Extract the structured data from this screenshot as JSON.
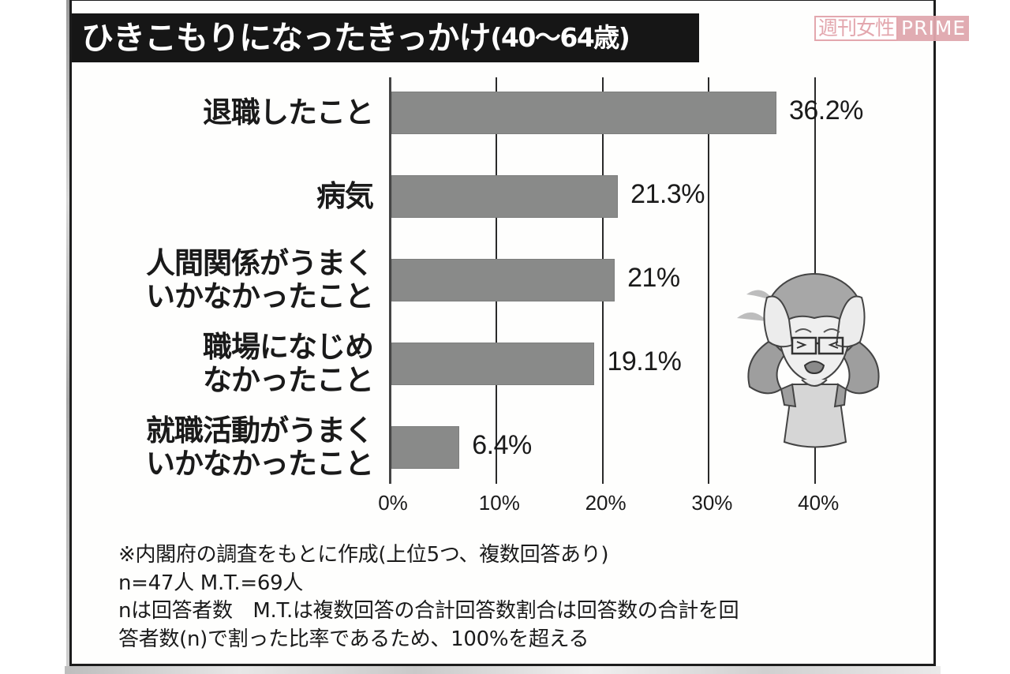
{
  "header": {
    "title_main": "ひきこもりになったきっかけ",
    "title_sub": "(40〜64歳)"
  },
  "logo": {
    "jp": "週刊女性",
    "en": "PRIME",
    "color": "#e0a8ae"
  },
  "chart_data": {
    "type": "bar",
    "orientation": "horizontal",
    "title": "ひきこもりになったきっかけ(40〜64歳)",
    "categories": [
      "退職したこと",
      "病気",
      "人間関係がうまくいかなかったこと",
      "職場になじめなかったこと",
      "就職活動がうまくいかなかったこと"
    ],
    "values": [
      36.2,
      21.3,
      21.0,
      19.1,
      6.4
    ],
    "value_labels": [
      "36.2%",
      "21.3%",
      "21%",
      "19.1%",
      "6.4%"
    ],
    "xlabel": "",
    "ylabel": "",
    "xlim": [
      0,
      40
    ],
    "x_ticks": [
      "0%",
      "10%",
      "20%",
      "30%",
      "40%"
    ],
    "grid": true,
    "bar_color": "#898a89",
    "legend": null
  },
  "categories_display": [
    {
      "lines": [
        "退職したこと"
      ]
    },
    {
      "lines": [
        "病気"
      ]
    },
    {
      "lines": [
        "人間関係がうまく",
        "いかなかったこと"
      ]
    },
    {
      "lines": [
        "職場になじめ",
        "なかったこと"
      ]
    },
    {
      "lines": [
        "就職活動がうまく",
        "いかなかったこと"
      ]
    }
  ],
  "notes": {
    "line1": "※内閣府の調査をもとに作成(上位5つ、複数回答あり)",
    "line2": "n=47人 M.T.=69人",
    "line3": "nは回答者数　M.T.は複数回答の合計回答数割合は回答数の合計を回",
    "line4": "答者数(n)で割った比率であるため、100%を超える"
  },
  "illustration": {
    "icon": "distressed-elderly-woman-holding-head-icon"
  }
}
